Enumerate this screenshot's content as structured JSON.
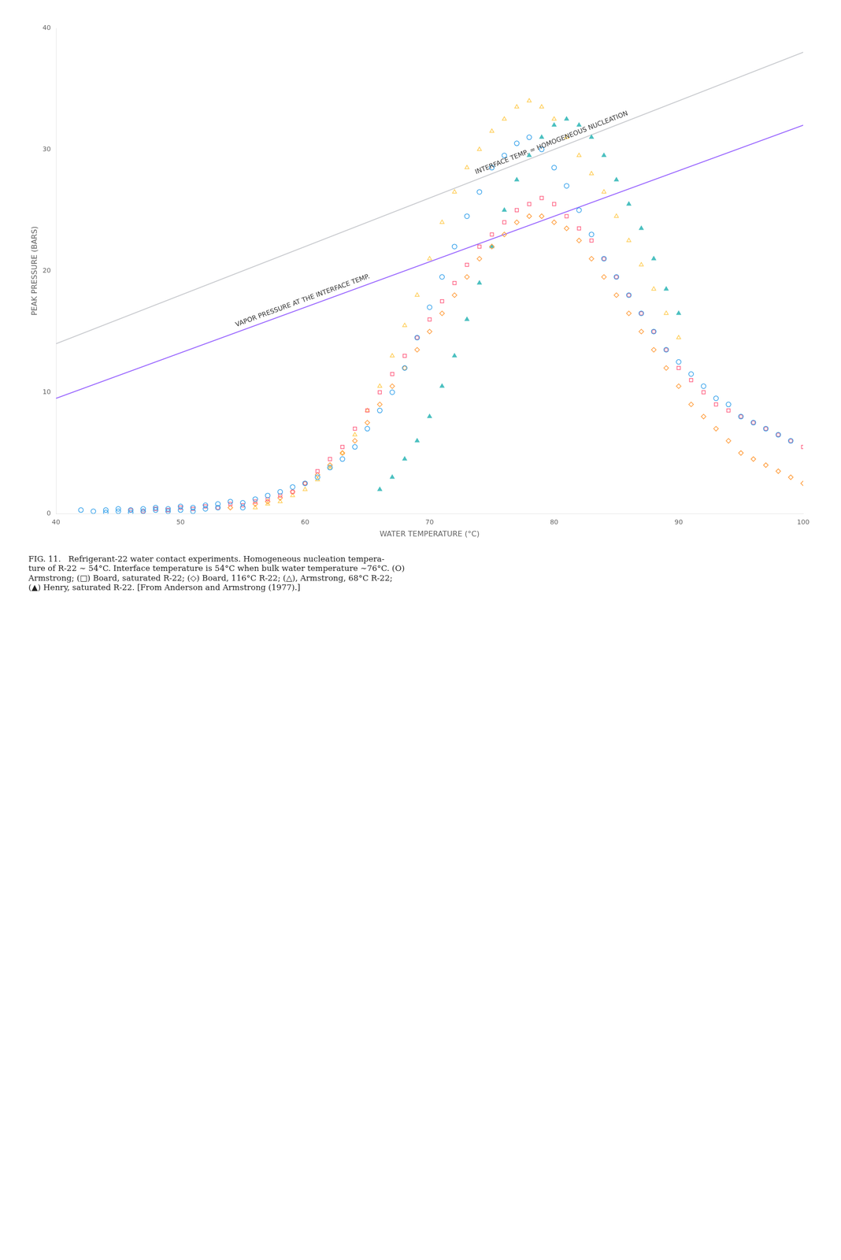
{
  "chart_data": {
    "type": "scatter",
    "title": [
      "FIG. 11.   Refrigerant-22 water contact experiments. Homogeneous nucleation tempera-",
      "ture of R-22 ∼ 54°C. Interface temperature is 54°C when bulk water temperature ∼76°C. (O)",
      "Armstrong; (□) Board, saturated R-22; (◇) Board, 116°C R-22; (△), Armstrong, 68°C R-22;",
      "(▲) Henry, saturated R-22. [From Anderson and Armstrong (1977).]"
    ],
    "xlabel": "WATER TEMPERATURE (°C)",
    "ylabel": "PEAK PRESSURE (BARS)",
    "xlim": [
      40,
      100
    ],
    "ylim": [
      0,
      40
    ],
    "xticks": [
      40,
      50,
      60,
      70,
      80,
      90,
      100
    ],
    "yticks": [
      0,
      10,
      20,
      30,
      40
    ],
    "grid": false,
    "legend": false,
    "annotations": [
      "VAPOR PRESSURE AT THE INTERFACE TEMP.",
      "INTERFACE TEMP. = HOMOGENEOUS NUCLEATION"
    ],
    "series": [
      {
        "type": "scatter",
        "marker": "circle-open",
        "x": [
          42,
          43,
          44,
          44,
          45,
          45,
          46,
          46,
          47,
          47,
          48,
          48,
          49,
          49,
          50,
          50,
          51,
          51,
          52,
          52,
          53,
          53,
          54,
          55,
          55,
          56,
          57,
          58,
          59,
          60,
          61,
          62,
          63,
          64,
          65,
          66,
          67,
          68,
          69,
          70,
          71,
          72,
          73,
          74,
          75,
          76,
          77,
          78,
          79,
          80,
          81,
          82,
          83,
          84,
          85,
          86,
          87,
          88,
          89,
          90,
          91,
          92,
          93,
          94,
          95,
          96,
          97,
          98,
          99
        ],
        "values": [
          0.3,
          0.2,
          0.3,
          0.1,
          0.4,
          0.2,
          0.3,
          0.1,
          0.4,
          0.2,
          0.5,
          0.3,
          0.4,
          0.2,
          0.6,
          0.3,
          0.5,
          0.2,
          0.7,
          0.4,
          0.8,
          0.5,
          1.0,
          0.9,
          0.5,
          1.2,
          1.5,
          1.8,
          2.2,
          2.5,
          3.0,
          3.8,
          4.5,
          5.5,
          7.0,
          8.5,
          10.0,
          12.0,
          14.5,
          17.0,
          19.5,
          22.0,
          24.5,
          26.5,
          28.5,
          29.5,
          30.5,
          31.0,
          30.0,
          28.5,
          27.0,
          25.0,
          23.0,
          21.0,
          19.5,
          18.0,
          16.5,
          15.0,
          13.5,
          12.5,
          11.5,
          10.5,
          9.5,
          9.0,
          8.0,
          7.5,
          7.0,
          6.5,
          6.0
        ]
      },
      {
        "type": "scatter",
        "marker": "square-open",
        "x": [
          46,
          47,
          48,
          49,
          50,
          51,
          52,
          53,
          54,
          55,
          56,
          57,
          58,
          59,
          60,
          61,
          62,
          63,
          64,
          65,
          66,
          67,
          68,
          69,
          70,
          71,
          72,
          73,
          74,
          75,
          76,
          77,
          78,
          79,
          80,
          81,
          82,
          83,
          84,
          85,
          86,
          87,
          88,
          89,
          90,
          91,
          92,
          93,
          94,
          95,
          96,
          97,
          98,
          99,
          100
        ],
        "values": [
          0.3,
          0.2,
          0.4,
          0.3,
          0.5,
          0.4,
          0.6,
          0.5,
          0.8,
          0.7,
          1.0,
          1.2,
          1.5,
          1.8,
          2.5,
          3.5,
          4.5,
          5.5,
          7.0,
          8.5,
          10.0,
          11.5,
          13.0,
          14.5,
          16.0,
          17.5,
          19.0,
          20.5,
          22.0,
          23.0,
          24.0,
          25.0,
          25.5,
          26.0,
          25.5,
          24.5,
          23.5,
          22.5,
          21.0,
          19.5,
          18.0,
          16.5,
          15.0,
          13.5,
          12.0,
          11.0,
          10.0,
          9.0,
          8.5,
          8.0,
          7.5,
          7.0,
          6.5,
          6.0,
          5.5
        ]
      },
      {
        "type": "scatter",
        "marker": "diamond-open",
        "x": [
          54,
          56,
          57,
          58,
          59,
          60,
          61,
          62,
          63,
          64,
          65,
          66,
          67,
          68,
          69,
          70,
          71,
          72,
          73,
          74,
          75,
          76,
          77,
          78,
          79,
          80,
          81,
          82,
          83,
          84,
          85,
          86,
          87,
          88,
          89,
          90,
          91,
          92,
          93,
          94,
          95,
          96,
          97,
          98,
          99,
          100
        ],
        "values": [
          0.5,
          0.8,
          1.0,
          1.3,
          1.8,
          2.5,
          3.2,
          4.0,
          5.0,
          6.0,
          7.5,
          9.0,
          10.5,
          12.0,
          13.5,
          15.0,
          16.5,
          18.0,
          19.5,
          21.0,
          22.0,
          23.0,
          24.0,
          24.5,
          24.5,
          24.0,
          23.5,
          22.5,
          21.0,
          19.5,
          18.0,
          16.5,
          15.0,
          13.5,
          12.0,
          10.5,
          9.0,
          8.0,
          7.0,
          6.0,
          5.0,
          4.5,
          4.0,
          3.5,
          3.0,
          2.5
        ]
      },
      {
        "type": "scatter",
        "marker": "triangle-open",
        "x": [
          56,
          57,
          58,
          59,
          60,
          61,
          62,
          63,
          64,
          65,
          66,
          67,
          68,
          69,
          70,
          71,
          72,
          73,
          74,
          75,
          76,
          77,
          78,
          79,
          80,
          81,
          82,
          83,
          84,
          85,
          86,
          87,
          88,
          89,
          90
        ],
        "values": [
          0.5,
          0.8,
          1.0,
          1.5,
          2.0,
          2.8,
          3.8,
          5.0,
          6.5,
          8.5,
          10.5,
          13.0,
          15.5,
          18.0,
          21.0,
          24.0,
          26.5,
          28.5,
          30.0,
          31.5,
          32.5,
          33.5,
          34.0,
          33.5,
          32.5,
          31.0,
          29.5,
          28.0,
          26.5,
          24.5,
          22.5,
          20.5,
          18.5,
          16.5,
          14.5
        ]
      },
      {
        "type": "scatter",
        "marker": "triangle",
        "x": [
          66,
          67,
          68,
          69,
          70,
          71,
          72,
          73,
          74,
          75,
          76,
          77,
          78,
          79,
          80,
          81,
          82,
          83,
          84,
          85,
          86,
          87,
          88,
          89,
          90
        ],
        "values": [
          2.0,
          3.0,
          4.5,
          6.0,
          8.0,
          10.5,
          13.0,
          16.0,
          19.0,
          22.0,
          25.0,
          27.5,
          29.5,
          31.0,
          32.0,
          32.5,
          32.0,
          31.0,
          29.5,
          27.5,
          25.5,
          23.5,
          21.0,
          18.5,
          16.5
        ]
      },
      {
        "type": "line",
        "line_style": "solid",
        "x": [
          40,
          100
        ],
        "values": [
          9.5,
          32.0
        ]
      },
      {
        "type": "line",
        "line_style": "solid",
        "x": [
          40,
          100
        ],
        "values": [
          14.0,
          38.0
        ]
      }
    ]
  }
}
